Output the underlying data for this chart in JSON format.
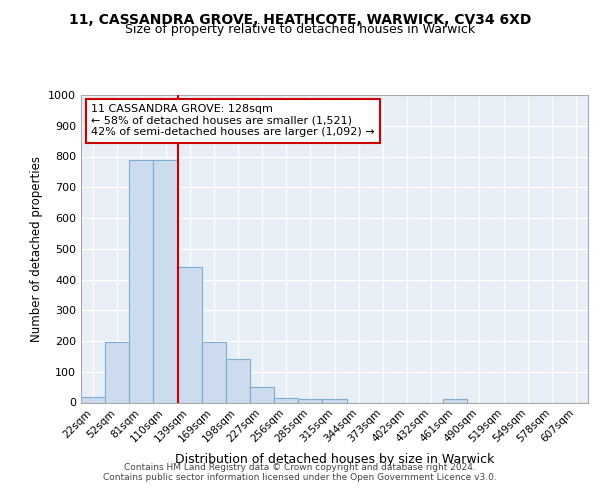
{
  "title1": "11, CASSANDRA GROVE, HEATHCOTE, WARWICK, CV34 6XD",
  "title2": "Size of property relative to detached houses in Warwick",
  "xlabel": "Distribution of detached houses by size in Warwick",
  "ylabel": "Number of detached properties",
  "categories": [
    "22sqm",
    "52sqm",
    "81sqm",
    "110sqm",
    "139sqm",
    "169sqm",
    "198sqm",
    "227sqm",
    "256sqm",
    "285sqm",
    "315sqm",
    "344sqm",
    "373sqm",
    "402sqm",
    "432sqm",
    "461sqm",
    "490sqm",
    "519sqm",
    "549sqm",
    "578sqm",
    "607sqm"
  ],
  "values": [
    17,
    197,
    789,
    789,
    441,
    196,
    141,
    49,
    16,
    10,
    10,
    0,
    0,
    0,
    0,
    10,
    0,
    0,
    0,
    0,
    0
  ],
  "bar_color": "#ccdcee",
  "bar_edge_color": "#7aadcf",
  "property_line_color": "#cc0000",
  "annotation_line1": "11 CASSANDRA GROVE: 128sqm",
  "annotation_line2": "← 58% of detached houses are smaller (1,521)",
  "annotation_line3": "42% of semi-detached houses are larger (1,092) →",
  "annotation_box_color": "#ffffff",
  "annotation_box_edge_color": "#cc0000",
  "ylim": [
    0,
    1000
  ],
  "yticks": [
    0,
    100,
    200,
    300,
    400,
    500,
    600,
    700,
    800,
    900,
    1000
  ],
  "footer1": "Contains HM Land Registry data © Crown copyright and database right 2024.",
  "footer2": "Contains public sector information licensed under the Open Government Licence v3.0.",
  "bg_color": "#ffffff",
  "plot_bg_color": "#e8eef5"
}
